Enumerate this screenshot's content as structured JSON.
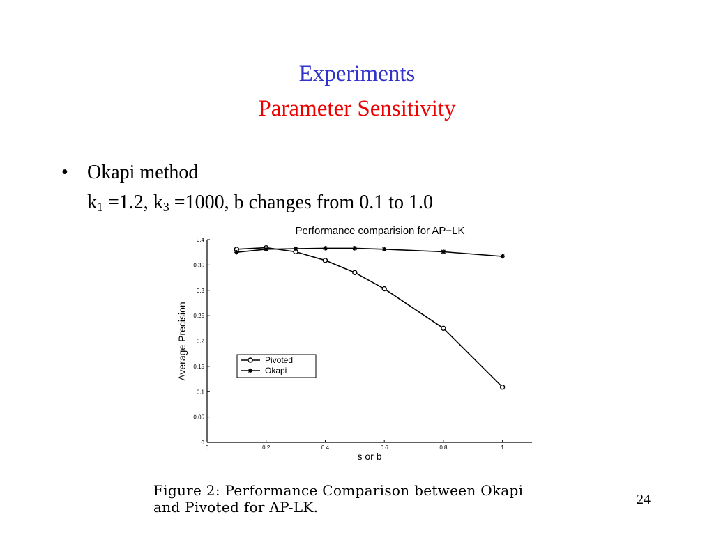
{
  "slide": {
    "title": "Experiments",
    "subtitle": "Parameter Sensitivity",
    "bullet_symbol": "•",
    "bullet_text": "Okapi method",
    "param": {
      "k1_base": "k",
      "k1_sub": "1",
      "k1_rest": " =1.2, k",
      "k3_sub": "3",
      "k3_rest": " =1000, b changes from 0.1 to 1.0"
    },
    "caption_line1": "Figure 2:  Performance Comparison between Okapi",
    "caption_line2": "and Pivoted for AP-LK.",
    "page_number": "24",
    "colors": {
      "title": "#3333cc",
      "subtitle": "#ee0000"
    }
  },
  "chart_data": {
    "type": "line",
    "title": "Performance comparision for AP−LK",
    "xlabel": "s or b",
    "ylabel": "Average Precision",
    "xlim": [
      0,
      1.1
    ],
    "ylim": [
      0,
      0.4
    ],
    "xticks": [
      0,
      0.2,
      0.4,
      0.6,
      0.8,
      1
    ],
    "xtick_labels": [
      "0",
      "0.2",
      "0.4",
      "0.6",
      "0.8",
      "1"
    ],
    "yticks": [
      0,
      0.05,
      0.1,
      0.15,
      0.2,
      0.25,
      0.3,
      0.35,
      0.4
    ],
    "ytick_labels": [
      "0",
      "0.05",
      "0.1",
      "0.15",
      "0.2",
      "0.25",
      "0.3",
      "0.35",
      "0.4"
    ],
    "legend_position": "lower-left",
    "grid": false,
    "series": [
      {
        "name": "Pivoted",
        "marker": "circle",
        "x": [
          0.1,
          0.2,
          0.3,
          0.4,
          0.5,
          0.6,
          0.8,
          1.0
        ],
        "y": [
          0.381,
          0.384,
          0.376,
          0.359,
          0.335,
          0.303,
          0.225,
          0.109
        ]
      },
      {
        "name": "Okapi",
        "marker": "star",
        "x": [
          0.1,
          0.2,
          0.3,
          0.4,
          0.5,
          0.6,
          0.8,
          1.0
        ],
        "y": [
          0.375,
          0.381,
          0.382,
          0.383,
          0.383,
          0.381,
          0.376,
          0.367
        ]
      }
    ]
  }
}
